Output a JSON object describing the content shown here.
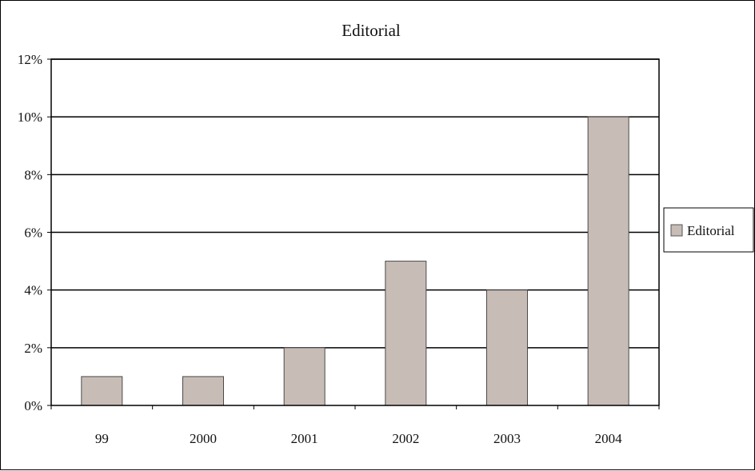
{
  "chart_data": {
    "type": "bar",
    "title": "Editorial",
    "xlabel": "",
    "ylabel": "",
    "categories": [
      "99",
      "2000",
      "2001",
      "2002",
      "2003",
      "2004"
    ],
    "series": [
      {
        "name": "Editorial",
        "values": [
          1,
          1,
          2,
          5,
          4,
          10
        ]
      }
    ],
    "ylim": [
      0,
      12
    ],
    "y_ticks": [
      "0%",
      "2%",
      "4%",
      "6%",
      "8%",
      "10%",
      "12%"
    ],
    "y_unit": "%",
    "grid": true,
    "legend_position": "right",
    "bar_color": "#c8bcb6",
    "axis_color": "#000000"
  }
}
